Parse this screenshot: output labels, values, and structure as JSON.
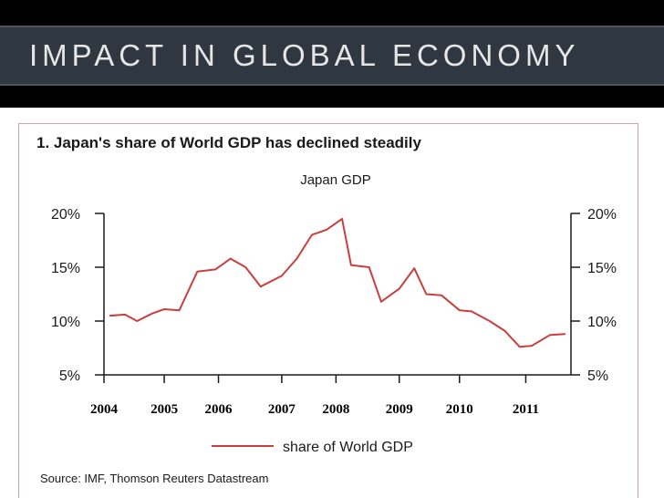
{
  "slide": {
    "title": "IMPACT IN GLOBAL ECONOMY"
  },
  "colors": {
    "background": "#000000",
    "title_band": "#2f3740",
    "title_text": "#e6e6e6",
    "series_line": "#c8403e",
    "frame": "#d9a0a0"
  },
  "chart_data": {
    "type": "line",
    "title": "1. Japan's share of World GDP has declined steadily",
    "subtitle": "Japan GDP",
    "xlabel": "",
    "ylabel": "",
    "ylim": [
      5,
      20
    ],
    "y_ticks": [
      "5%",
      "10%",
      "15%",
      "20%"
    ],
    "y_ticks_right": [
      "5%",
      "10%",
      "15%",
      "20%"
    ],
    "y_tick_values": [
      5,
      10,
      15,
      20
    ],
    "x_tick_labels": [
      "2004",
      "2005",
      "2006",
      "2007",
      "2008",
      "2009",
      "2010",
      "2011"
    ],
    "x_tick_values": [
      2004.0,
      2005.0,
      2005.9,
      2006.95,
      2007.85,
      2008.9,
      2009.9,
      2011.0
    ],
    "xlim": [
      2004.0,
      2011.75
    ],
    "grid": false,
    "legend_position": "bottom-center",
    "series": [
      {
        "name": "share of World GDP",
        "x": [
          2004.1,
          2004.35,
          2004.55,
          2004.8,
          2005.0,
          2005.25,
          2005.55,
          2005.85,
          2006.1,
          2006.35,
          2006.6,
          2006.95,
          2007.2,
          2007.45,
          2007.7,
          2007.95,
          2008.1,
          2008.4,
          2008.6,
          2008.9,
          2009.15,
          2009.35,
          2009.6,
          2009.9,
          2010.1,
          2010.4,
          2010.65,
          2010.9,
          2011.1,
          2011.4,
          2011.65
        ],
        "y": [
          10.5,
          10.6,
          10.0,
          10.7,
          11.1,
          11.0,
          14.6,
          14.8,
          15.8,
          15.0,
          13.2,
          14.2,
          15.8,
          18.0,
          18.5,
          19.5,
          15.2,
          15.0,
          11.8,
          13.0,
          14.9,
          12.5,
          12.4,
          11.0,
          10.9,
          10.0,
          9.1,
          7.6,
          7.7,
          8.7,
          8.8
        ]
      }
    ],
    "source": "Source: IMF, Thomson Reuters Datastream"
  }
}
